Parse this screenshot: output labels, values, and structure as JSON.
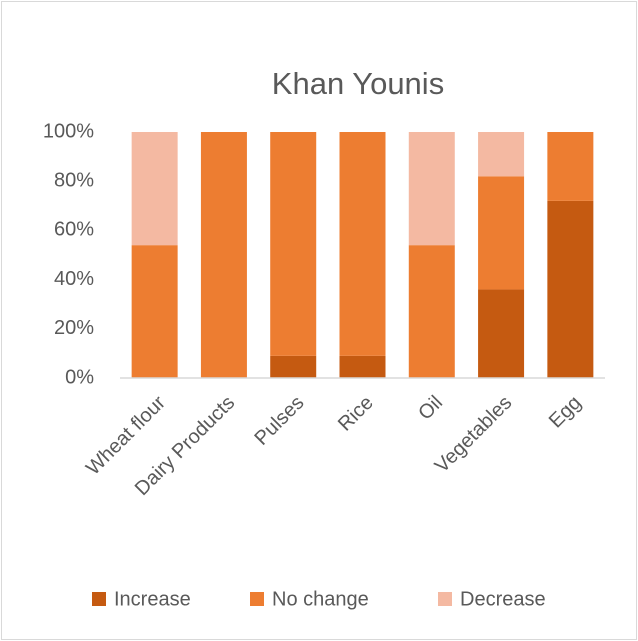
{
  "chart_data": {
    "type": "stacked_bar",
    "title": "Khan Younis",
    "categories": [
      "Wheat flour",
      "Dairy Products",
      "Pulses",
      "Rice",
      "Oil",
      "Vegetables",
      "Egg"
    ],
    "series": [
      {
        "name": "Increase",
        "color": "#c55a11",
        "values": [
          0,
          0,
          9,
          9,
          0,
          36,
          72
        ]
      },
      {
        "name": "No change",
        "color": "#ed7d31",
        "values": [
          54,
          100,
          91,
          91,
          54,
          46,
          28
        ]
      },
      {
        "name": "Decrease",
        "color": "#f4b9a2",
        "values": [
          46,
          0,
          0,
          0,
          46,
          18,
          0
        ]
      }
    ],
    "ylim": [
      0,
      100
    ],
    "yticks": [
      {
        "value": 0,
        "label": "0%"
      },
      {
        "value": 20,
        "label": "20%"
      },
      {
        "value": 40,
        "label": "40%"
      },
      {
        "value": 60,
        "label": "60%"
      },
      {
        "value": 80,
        "label": "80%"
      },
      {
        "value": 100,
        "label": "100%"
      }
    ],
    "legend": "bottom"
  }
}
